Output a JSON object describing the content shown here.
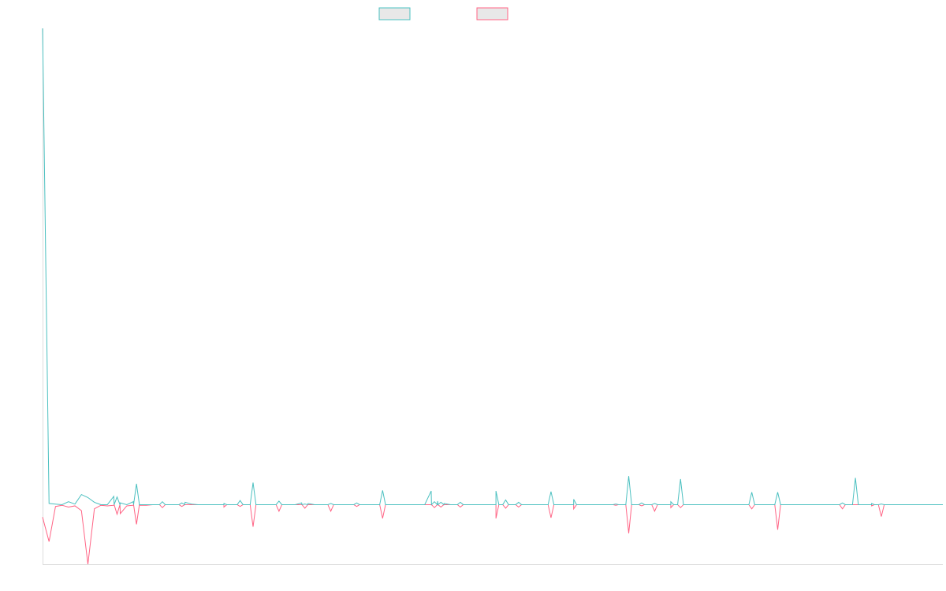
{
  "chart_data": {
    "type": "line",
    "title": "",
    "xlabel": "",
    "ylabel": "",
    "grid": false,
    "legend": "top-center",
    "x_count": 140,
    "ylim": [
      -10,
      80
    ],
    "colors": {
      "series_a": "#4bc0c0",
      "series_b": "#ff6384",
      "swatch_fill": "#e8e8e8",
      "axis": "#dcdcdc"
    },
    "series": [
      {
        "values": [
          80,
          0.2,
          0.1,
          0,
          0.5,
          0.1,
          1.7,
          1.2,
          0.4,
          0,
          0,
          1.4,
          0.3,
          0,
          0.5,
          0,
          0,
          0,
          0,
          0,
          0,
          0,
          0.4,
          0.1,
          0,
          0,
          0,
          0,
          0,
          0,
          0,
          0,
          0,
          0,
          0,
          0,
          0,
          0,
          0,
          0,
          0.3,
          0.2,
          0,
          0,
          0,
          0,
          0,
          0,
          0,
          0,
          0,
          0,
          0,
          0,
          0,
          0,
          0,
          0,
          0,
          0,
          2.3,
          0.6,
          0.2,
          0,
          0,
          0,
          0,
          0,
          0,
          0,
          0,
          0,
          0,
          0,
          0,
          0,
          0,
          0,
          0,
          0,
          0,
          0,
          0,
          0,
          0,
          0,
          0,
          0,
          0,
          0,
          0,
          0,
          0,
          0,
          0,
          0,
          0,
          0,
          0,
          0,
          0,
          0,
          0,
          0,
          0,
          0,
          0,
          0,
          0,
          0,
          0,
          0,
          0,
          0,
          0,
          0,
          0,
          0,
          0,
          0,
          0,
          0,
          0,
          0,
          0,
          0,
          0,
          0,
          0,
          0,
          0,
          0,
          0,
          0,
          0,
          0,
          0,
          0,
          0,
          0
        ]
      },
      {
        "values": [
          -2.1,
          -6.2,
          -0.3,
          -0.1,
          -0.4,
          -0.2,
          -1.0,
          -10,
          -0.7,
          -0.1,
          -0.2,
          -0.1,
          -1.5,
          -0.2,
          -0.1,
          -0.1,
          -0.1,
          0,
          0,
          0,
          0,
          0,
          0,
          0,
          0,
          0,
          0,
          0,
          0,
          0,
          0,
          0,
          0,
          0,
          0,
          0,
          0,
          0,
          0,
          0,
          0,
          0,
          0,
          0,
          0,
          0,
          0,
          0,
          0,
          0,
          0,
          0,
          0,
          0,
          0,
          0,
          0,
          0,
          0,
          0,
          0,
          0,
          0,
          0,
          0,
          0,
          0,
          0,
          0,
          0,
          0,
          0,
          0,
          0,
          0,
          0,
          0,
          0,
          0,
          0,
          0,
          0,
          0,
          0,
          0,
          0,
          0,
          0,
          0,
          0,
          0,
          0,
          0,
          0,
          0,
          0,
          0,
          0,
          0,
          0,
          0,
          0,
          0,
          0,
          0,
          0,
          0,
          0,
          0,
          0,
          0,
          0,
          0,
          0,
          0,
          0,
          0,
          0,
          0,
          0,
          0,
          0,
          0,
          0,
          0,
          0,
          0,
          0,
          0,
          0,
          0,
          0,
          0,
          0,
          0,
          0,
          0,
          0,
          0,
          0
        ]
      }
    ],
    "spikes": [
      {
        "x": 11.5,
        "up": 1.3,
        "down": -1.6
      },
      {
        "x": 14.5,
        "up": 3.5,
        "down": -3.3
      },
      {
        "x": 18.5,
        "up": 0.5,
        "down": -0.5
      },
      {
        "x": 21.5,
        "up": 0.3,
        "down": -0.3
      },
      {
        "x": 28,
        "up": 0.2,
        "down": -0.4
      },
      {
        "x": 30.5,
        "up": 0.7,
        "down": -0.3
      },
      {
        "x": 32.5,
        "up": 3.7,
        "down": -3.7
      },
      {
        "x": 36.5,
        "up": 0.6,
        "down": -1.1
      },
      {
        "x": 40.5,
        "up": 0.1,
        "down": -0.6
      },
      {
        "x": 44.5,
        "up": 0.2,
        "down": -1.1
      },
      {
        "x": 48.5,
        "up": 0.3,
        "down": -0.3
      },
      {
        "x": 52.5,
        "up": 2.4,
        "down": -2.3
      },
      {
        "x": 60.5,
        "up": 0.5,
        "down": -0.5
      },
      {
        "x": 61.5,
        "up": 0.4,
        "down": -0.4
      },
      {
        "x": 64.5,
        "up": 0.4,
        "down": -0.4
      },
      {
        "x": 70,
        "up": 2.3,
        "down": -2.3
      },
      {
        "x": 71.5,
        "up": 0.8,
        "down": -0.6
      },
      {
        "x": 73.5,
        "up": 0.4,
        "down": -0.4
      },
      {
        "x": 78.5,
        "up": 2.2,
        "down": -2.2
      },
      {
        "x": 82,
        "up": 0.9,
        "down": -0.7
      },
      {
        "x": 88.5,
        "up": 0.1,
        "down": -0.1
      },
      {
        "x": 90.5,
        "up": 4.8,
        "down": -4.8
      },
      {
        "x": 92.5,
        "up": 0.3,
        "down": -0.2
      },
      {
        "x": 94.5,
        "up": 0.2,
        "down": -1.1
      },
      {
        "x": 97,
        "up": 0.5,
        "down": -0.5
      },
      {
        "x": 98.5,
        "up": 4.3,
        "down": -0.5
      },
      {
        "x": 109.5,
        "up": 2.1,
        "down": -0.7
      },
      {
        "x": 113.5,
        "up": 2.1,
        "down": -4.2
      },
      {
        "x": 123.5,
        "up": 0.3,
        "down": -0.7
      },
      {
        "x": 125.5,
        "up": 4.5,
        "down": 0
      },
      {
        "x": 128,
        "up": 0.2,
        "down": -0.2
      },
      {
        "x": 129.5,
        "up": 0.1,
        "down": -2.0
      }
    ]
  }
}
